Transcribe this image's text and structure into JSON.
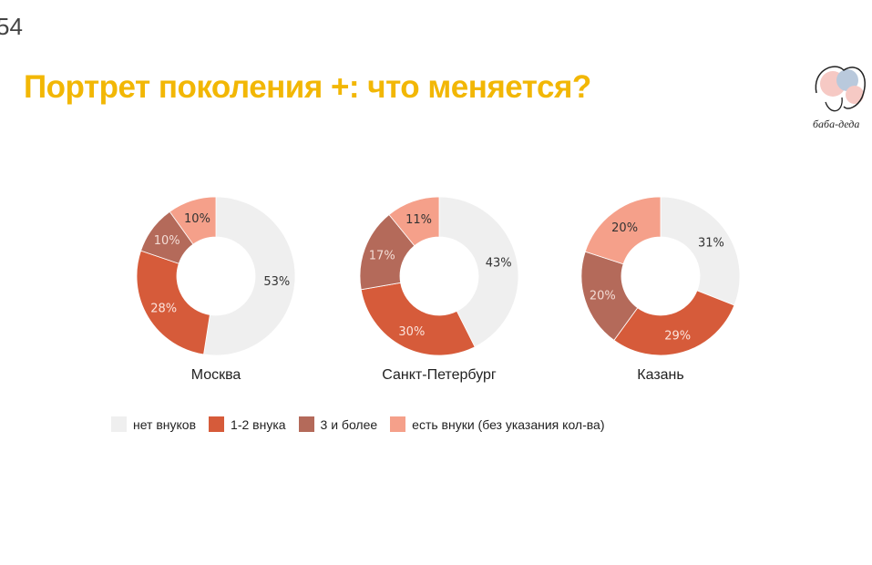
{
  "slide_number": "54",
  "title": "Портрет поколения +: что меняется?",
  "logo_text": "баба-деда",
  "chart_data": {
    "type": "pie",
    "variant": "donut",
    "legend_position": "bottom",
    "legend": [
      "нет внуков",
      "1-2 внука",
      "3 и более",
      "есть внуки (без указания кол-ва)"
    ],
    "colors": [
      "#efefef",
      "#d65b3a",
      "#b46a5a",
      "#f5a08a"
    ],
    "charts": [
      {
        "label": "Москва",
        "values": [
          53,
          28,
          10,
          10
        ]
      },
      {
        "label": "Санкт-Петербург",
        "values": [
          43,
          30,
          17,
          11
        ]
      },
      {
        "label": "Казань",
        "values": [
          31,
          29,
          20,
          20
        ]
      }
    ]
  }
}
